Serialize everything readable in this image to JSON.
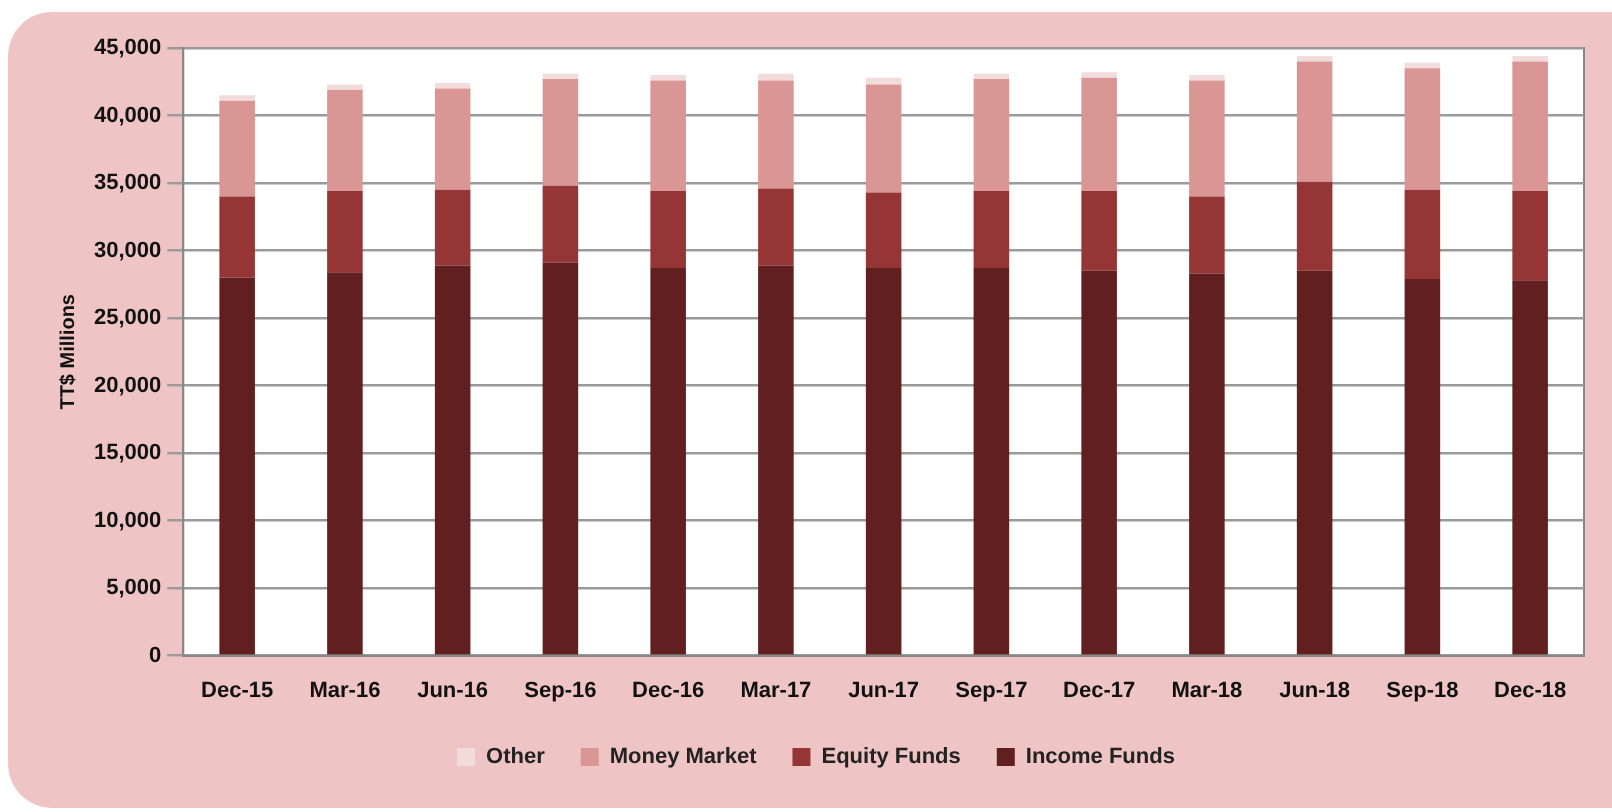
{
  "chart_data": {
    "type": "bar",
    "stacked": true,
    "ylabel": "TT$ Millions",
    "categories": [
      "Dec-15",
      "Mar-16",
      "Jun-16",
      "Sep-16",
      "Dec-16",
      "Mar-17",
      "Jun-17",
      "Sep-17",
      "Dec-17",
      "Mar-18",
      "Jun-18",
      "Sep-18",
      "Dec-18"
    ],
    "series": [
      {
        "name": "Income Funds",
        "color": "#61201f",
        "values": [
          28000,
          28400,
          28900,
          29100,
          28700,
          28900,
          28700,
          28700,
          28500,
          28300,
          28500,
          27900,
          27800
        ]
      },
      {
        "name": "Equity Funds",
        "color": "#953535",
        "values": [
          6000,
          6000,
          5600,
          5700,
          5700,
          5700,
          5600,
          5700,
          5900,
          5700,
          6600,
          6600,
          6600
        ]
      },
      {
        "name": "Money Market",
        "color": "#d99694",
        "values": [
          7100,
          7500,
          7500,
          7900,
          8200,
          8000,
          8000,
          8300,
          8400,
          8600,
          8900,
          9000,
          9600
        ]
      },
      {
        "name": "Other",
        "color": "#f2dcdb",
        "values": [
          400,
          400,
          400,
          400,
          400,
          500,
          500,
          400,
          400,
          400,
          400,
          400,
          400
        ]
      }
    ],
    "ylim": [
      0,
      45000
    ],
    "yticks": [
      0,
      {
        "value": 5000,
        "label": "5,000"
      },
      {
        "value": 10000,
        "label": "10,000"
      },
      {
        "value": 15000,
        "label": "15,000"
      },
      {
        "value": 20000,
        "label": "20,000"
      },
      {
        "value": 25000,
        "label": "25,000"
      },
      {
        "value": 30000,
        "label": "30,000"
      },
      {
        "value": 35000,
        "label": "35,000"
      },
      {
        "value": 40000,
        "label": "40,000"
      },
      {
        "value": 45000,
        "label": "45,000"
      }
    ],
    "grid": "y",
    "legend": "bottom"
  }
}
